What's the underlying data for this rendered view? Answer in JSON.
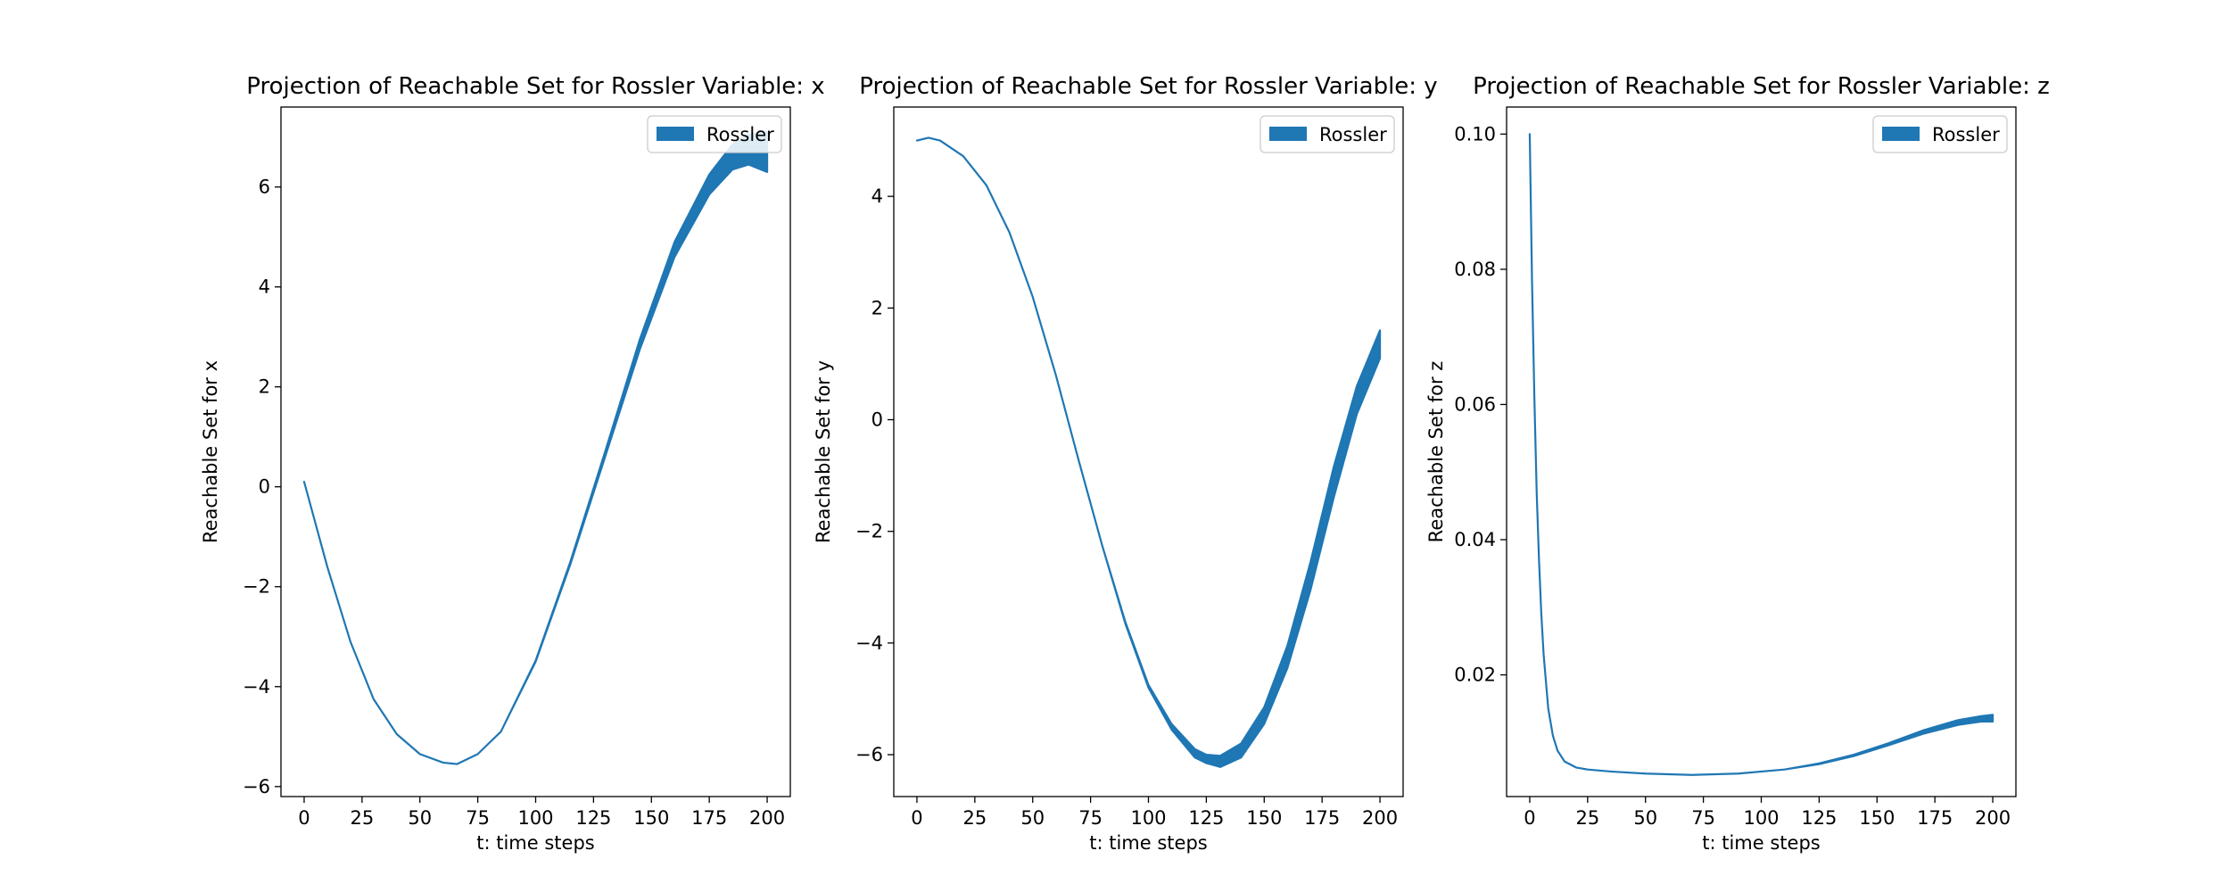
{
  "chart_data": [
    {
      "type": "area",
      "title": "Projection of Reachable Set for Rossler Variable: x",
      "xlabel": "t: time steps",
      "ylabel": "Reachable Set for x",
      "xlim": [
        -10,
        210
      ],
      "ylim": [
        -6.2,
        7.6
      ],
      "xticks": [
        0,
        25,
        50,
        75,
        100,
        125,
        150,
        175,
        200
      ],
      "xtick_labels": [
        "0",
        "25",
        "50",
        "75",
        "100",
        "125",
        "150",
        "175",
        "200"
      ],
      "yticks": [
        -6,
        -4,
        -2,
        0,
        2,
        4,
        6
      ],
      "ytick_labels": [
        "−6",
        "−4",
        "−2",
        "0",
        "2",
        "4",
        "6"
      ],
      "legend": "upper right",
      "series": [
        {
          "name": "Rossler",
          "color": "#1f77b4",
          "t": [
            0,
            10,
            20,
            30,
            40,
            50,
            60,
            66,
            75,
            85,
            100,
            115,
            130,
            145,
            160,
            175,
            185,
            192,
            200
          ],
          "lower": [
            0.1,
            -1.6,
            -3.1,
            -4.25,
            -4.95,
            -5.35,
            -5.52,
            -5.55,
            -5.35,
            -4.9,
            -3.5,
            -1.55,
            0.6,
            2.75,
            4.6,
            5.85,
            6.35,
            6.45,
            6.3
          ],
          "upper": [
            0.1,
            -1.6,
            -3.1,
            -4.25,
            -4.95,
            -5.35,
            -5.52,
            -5.55,
            -5.35,
            -4.9,
            -3.48,
            -1.5,
            0.7,
            2.95,
            4.9,
            6.25,
            6.85,
            7.05,
            7.1
          ]
        }
      ]
    },
    {
      "type": "area",
      "title": "Projection of Reachable Set for Rossler Variable: y",
      "xlabel": "t: time steps",
      "ylabel": "Reachable Set for y",
      "xlim": [
        -10,
        210
      ],
      "ylim": [
        -6.75,
        5.6
      ],
      "xticks": [
        0,
        25,
        50,
        75,
        100,
        125,
        150,
        175,
        200
      ],
      "xtick_labels": [
        "0",
        "25",
        "50",
        "75",
        "100",
        "125",
        "150",
        "175",
        "200"
      ],
      "yticks": [
        -6,
        -4,
        -2,
        0,
        2,
        4
      ],
      "ytick_labels": [
        "−6",
        "−4",
        "−2",
        "0",
        "2",
        "4"
      ],
      "legend": "upper right",
      "series": [
        {
          "name": "Rossler",
          "color": "#1f77b4",
          "t": [
            0,
            5,
            10,
            20,
            30,
            40,
            50,
            60,
            70,
            80,
            90,
            100,
            110,
            120,
            125,
            131,
            140,
            150,
            160,
            170,
            180,
            190,
            200
          ],
          "lower": [
            5.0,
            5.05,
            5.0,
            4.72,
            4.2,
            3.35,
            2.2,
            0.8,
            -0.75,
            -2.25,
            -3.65,
            -4.8,
            -5.55,
            -6.05,
            -6.15,
            -6.22,
            -6.05,
            -5.45,
            -4.45,
            -3.05,
            -1.4,
            0.1,
            1.1
          ],
          "upper": [
            5.0,
            5.05,
            5.0,
            4.72,
            4.2,
            3.35,
            2.2,
            0.8,
            -0.75,
            -2.25,
            -3.62,
            -4.75,
            -5.45,
            -5.9,
            -6.0,
            -6.02,
            -5.8,
            -5.15,
            -4.05,
            -2.55,
            -0.85,
            0.6,
            1.6
          ]
        }
      ]
    },
    {
      "type": "area",
      "title": "Projection of Reachable Set for Rossler Variable: z",
      "xlabel": "t: time steps",
      "ylabel": "Reachable Set for z",
      "xlim": [
        -10,
        210
      ],
      "ylim": [
        0.002,
        0.104
      ],
      "xticks": [
        0,
        25,
        50,
        75,
        100,
        125,
        150,
        175,
        200
      ],
      "xtick_labels": [
        "0",
        "25",
        "50",
        "75",
        "100",
        "125",
        "150",
        "175",
        "200"
      ],
      "yticks": [
        0.02,
        0.04,
        0.06,
        0.08,
        0.1
      ],
      "ytick_labels": [
        "0.02",
        "0.04",
        "0.06",
        "0.08",
        "0.10"
      ],
      "legend": "upper right",
      "series": [
        {
          "name": "Rossler",
          "color": "#1f77b4",
          "t": [
            0,
            1,
            2,
            3,
            4,
            5,
            6,
            8,
            10,
            12,
            15,
            20,
            25,
            35,
            50,
            70,
            90,
            110,
            125,
            140,
            155,
            170,
            185,
            195,
            200
          ],
          "lower": [
            0.1,
            0.078,
            0.061,
            0.047,
            0.037,
            0.029,
            0.023,
            0.015,
            0.011,
            0.0088,
            0.0072,
            0.0063,
            0.006,
            0.0057,
            0.0054,
            0.0052,
            0.0054,
            0.006,
            0.0068,
            0.008,
            0.0096,
            0.0113,
            0.0126,
            0.0131,
            0.0131
          ],
          "upper": [
            0.1,
            0.078,
            0.061,
            0.047,
            0.037,
            0.029,
            0.023,
            0.015,
            0.011,
            0.0088,
            0.0072,
            0.0063,
            0.006,
            0.0057,
            0.0054,
            0.0052,
            0.0054,
            0.006,
            0.0069,
            0.0082,
            0.0099,
            0.0118,
            0.0133,
            0.0139,
            0.0141
          ]
        }
      ]
    }
  ]
}
